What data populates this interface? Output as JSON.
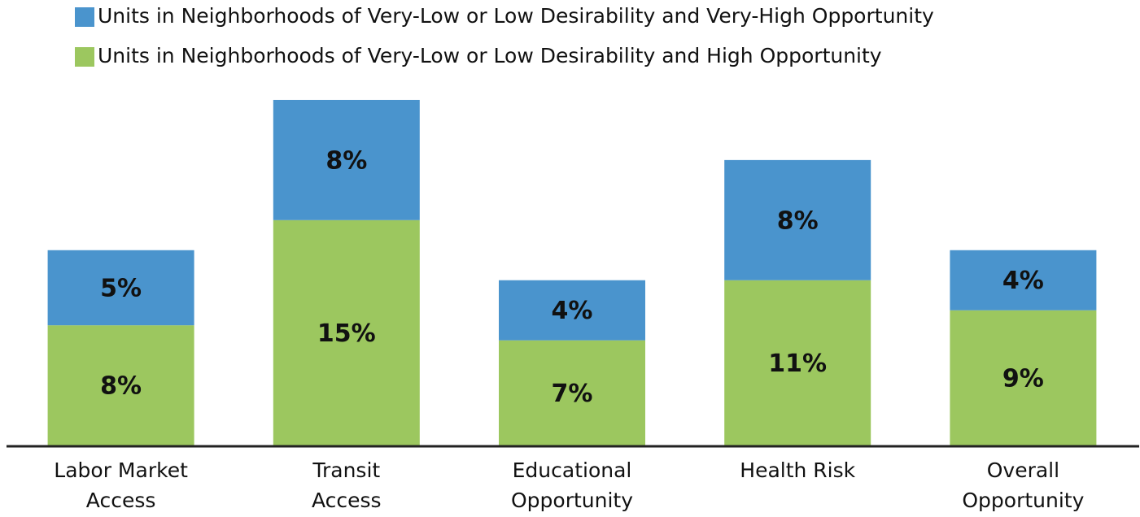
{
  "chart_data": {
    "type": "stacked_bar",
    "categories": [
      [
        "Labor Market",
        "Access"
      ],
      [
        "Transit",
        "Access"
      ],
      [
        "Educational",
        "Opportunity"
      ],
      [
        "Health Risk"
      ],
      [
        "Overall",
        "Opportunity"
      ]
    ],
    "series": [
      {
        "name": "Units in Neighborhoods of Very-Low or Low Desirability and High Opportunity",
        "color": "#9cc75f",
        "values": [
          8,
          15,
          7,
          11,
          9
        ],
        "value_labels": [
          "8%",
          "15%",
          "7%",
          "11%",
          "9%"
        ]
      },
      {
        "name": "Units in Neighborhoods of Very-Low or Low Desirability and Very-High Opportunity",
        "color": "#4a94cd",
        "values": [
          5,
          8,
          4,
          8,
          4
        ],
        "value_labels": [
          "5%",
          "8%",
          "4%",
          "8%",
          "4%"
        ]
      }
    ],
    "ylim": [
      0,
      25
    ],
    "legend": "top"
  }
}
